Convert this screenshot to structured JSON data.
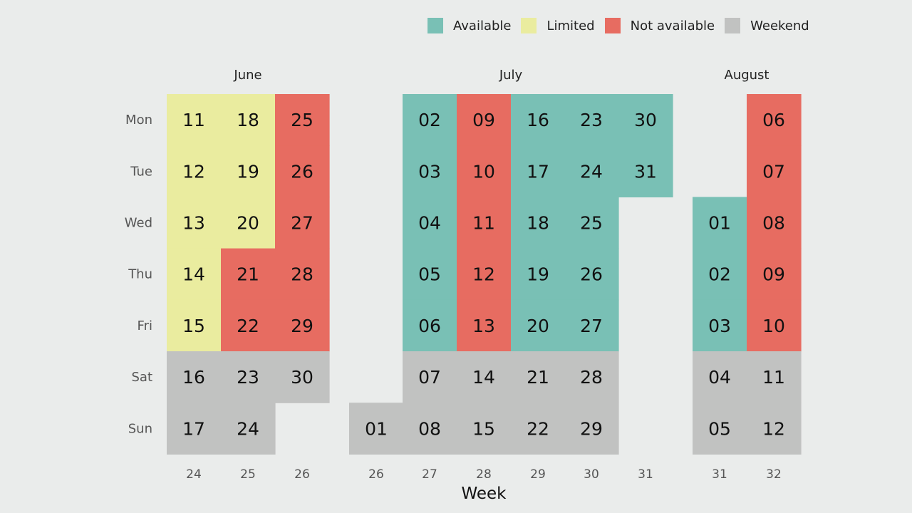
{
  "colors": {
    "available": "#79c0b5",
    "limited": "#eaec9f",
    "unavailable": "#e76c61",
    "weekend": "#c1c2c1"
  },
  "chart_data": {
    "type": "heatmap",
    "xlabel": "Week",
    "legend": {
      "placement": "top-right",
      "items": [
        {
          "key": "available",
          "label": "Available",
          "color": "#79c0b5"
        },
        {
          "key": "limited",
          "label": "Limited",
          "color": "#eaec9f"
        },
        {
          "key": "unavailable",
          "label": "Not available",
          "color": "#e76c61"
        },
        {
          "key": "weekend",
          "label": "Weekend",
          "color": "#c1c2c1"
        }
      ]
    },
    "days": [
      "Mon",
      "Tue",
      "Wed",
      "Thu",
      "Fri",
      "Sat",
      "Sun"
    ],
    "months": [
      {
        "name": "June",
        "first_week": 24,
        "last_week": 26
      },
      {
        "name": "July",
        "first_week": 26,
        "last_week": 31
      },
      {
        "name": "August",
        "first_week": 31,
        "last_week": 32
      }
    ],
    "weeks": [
      {
        "month": "June",
        "week": "24",
        "days": [
          {
            "day": "Mon",
            "date": "11",
            "status": "limited"
          },
          {
            "day": "Tue",
            "date": "12",
            "status": "limited"
          },
          {
            "day": "Wed",
            "date": "13",
            "status": "limited"
          },
          {
            "day": "Thu",
            "date": "14",
            "status": "limited"
          },
          {
            "day": "Fri",
            "date": "15",
            "status": "limited"
          },
          {
            "day": "Sat",
            "date": "16",
            "status": "weekend"
          },
          {
            "day": "Sun",
            "date": "17",
            "status": "weekend"
          }
        ]
      },
      {
        "month": "June",
        "week": "25",
        "days": [
          {
            "day": "Mon",
            "date": "18",
            "status": "limited"
          },
          {
            "day": "Tue",
            "date": "19",
            "status": "limited"
          },
          {
            "day": "Wed",
            "date": "20",
            "status": "limited"
          },
          {
            "day": "Thu",
            "date": "21",
            "status": "unavailable"
          },
          {
            "day": "Fri",
            "date": "22",
            "status": "unavailable"
          },
          {
            "day": "Sat",
            "date": "23",
            "status": "weekend"
          },
          {
            "day": "Sun",
            "date": "24",
            "status": "weekend"
          }
        ]
      },
      {
        "month": "June",
        "week": "26",
        "days": [
          {
            "day": "Mon",
            "date": "25",
            "status": "unavailable"
          },
          {
            "day": "Tue",
            "date": "26",
            "status": "unavailable"
          },
          {
            "day": "Wed",
            "date": "27",
            "status": "unavailable"
          },
          {
            "day": "Thu",
            "date": "28",
            "status": "unavailable"
          },
          {
            "day": "Fri",
            "date": "29",
            "status": "unavailable"
          },
          {
            "day": "Sat",
            "date": "30",
            "status": "weekend"
          }
        ]
      },
      {
        "month": "July",
        "week": "26",
        "days": [
          {
            "day": "Sun",
            "date": "01",
            "status": "weekend"
          }
        ]
      },
      {
        "month": "July",
        "week": "27",
        "days": [
          {
            "day": "Mon",
            "date": "02",
            "status": "available"
          },
          {
            "day": "Tue",
            "date": "03",
            "status": "available"
          },
          {
            "day": "Wed",
            "date": "04",
            "status": "available"
          },
          {
            "day": "Thu",
            "date": "05",
            "status": "available"
          },
          {
            "day": "Fri",
            "date": "06",
            "status": "available"
          },
          {
            "day": "Sat",
            "date": "07",
            "status": "weekend"
          },
          {
            "day": "Sun",
            "date": "08",
            "status": "weekend"
          }
        ]
      },
      {
        "month": "July",
        "week": "28",
        "days": [
          {
            "day": "Mon",
            "date": "09",
            "status": "unavailable"
          },
          {
            "day": "Tue",
            "date": "10",
            "status": "unavailable"
          },
          {
            "day": "Wed",
            "date": "11",
            "status": "unavailable"
          },
          {
            "day": "Thu",
            "date": "12",
            "status": "unavailable"
          },
          {
            "day": "Fri",
            "date": "13",
            "status": "unavailable"
          },
          {
            "day": "Sat",
            "date": "14",
            "status": "weekend"
          },
          {
            "day": "Sun",
            "date": "15",
            "status": "weekend"
          }
        ]
      },
      {
        "month": "July",
        "week": "29",
        "days": [
          {
            "day": "Mon",
            "date": "16",
            "status": "available"
          },
          {
            "day": "Tue",
            "date": "17",
            "status": "available"
          },
          {
            "day": "Wed",
            "date": "18",
            "status": "available"
          },
          {
            "day": "Thu",
            "date": "19",
            "status": "available"
          },
          {
            "day": "Fri",
            "date": "20",
            "status": "available"
          },
          {
            "day": "Sat",
            "date": "21",
            "status": "weekend"
          },
          {
            "day": "Sun",
            "date": "22",
            "status": "weekend"
          }
        ]
      },
      {
        "month": "July",
        "week": "30",
        "days": [
          {
            "day": "Mon",
            "date": "23",
            "status": "available"
          },
          {
            "day": "Tue",
            "date": "24",
            "status": "available"
          },
          {
            "day": "Wed",
            "date": "25",
            "status": "available"
          },
          {
            "day": "Thu",
            "date": "26",
            "status": "available"
          },
          {
            "day": "Fri",
            "date": "27",
            "status": "available"
          },
          {
            "day": "Sat",
            "date": "28",
            "status": "weekend"
          },
          {
            "day": "Sun",
            "date": "29",
            "status": "weekend"
          }
        ]
      },
      {
        "month": "July",
        "week": "31",
        "days": [
          {
            "day": "Mon",
            "date": "30",
            "status": "available"
          },
          {
            "day": "Tue",
            "date": "31",
            "status": "available"
          }
        ]
      },
      {
        "month": "August",
        "week": "31",
        "days": [
          {
            "day": "Wed",
            "date": "01",
            "status": "available"
          },
          {
            "day": "Thu",
            "date": "02",
            "status": "available"
          },
          {
            "day": "Fri",
            "date": "03",
            "status": "available"
          },
          {
            "day": "Sat",
            "date": "04",
            "status": "weekend"
          },
          {
            "day": "Sun",
            "date": "05",
            "status": "weekend"
          }
        ]
      },
      {
        "month": "August",
        "week": "32",
        "days": [
          {
            "day": "Mon",
            "date": "06",
            "status": "unavailable"
          },
          {
            "day": "Tue",
            "date": "07",
            "status": "unavailable"
          },
          {
            "day": "Wed",
            "date": "08",
            "status": "unavailable"
          },
          {
            "day": "Thu",
            "date": "09",
            "status": "unavailable"
          },
          {
            "day": "Fri",
            "date": "10",
            "status": "unavailable"
          },
          {
            "day": "Sat",
            "date": "11",
            "status": "weekend"
          },
          {
            "day": "Sun",
            "date": "12",
            "status": "weekend"
          }
        ]
      }
    ]
  }
}
